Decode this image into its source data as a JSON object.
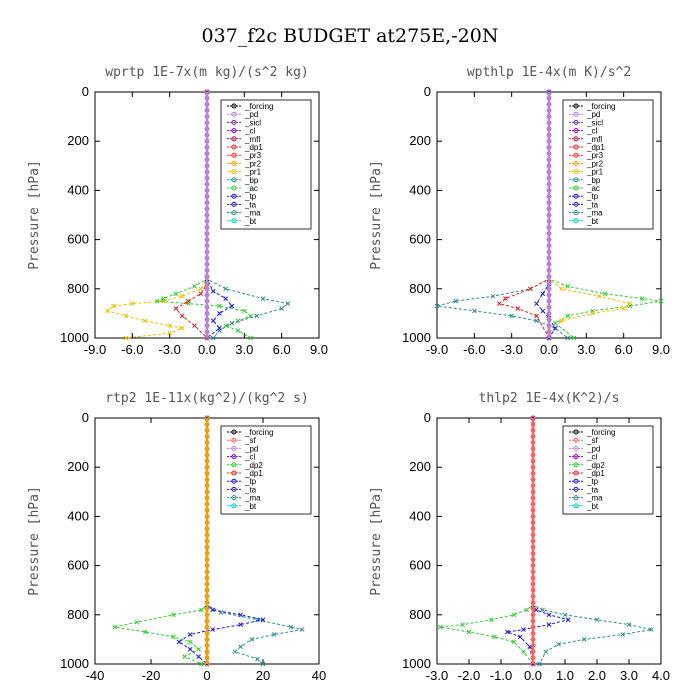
{
  "figure_title": "037_f2c  BUDGET at275E,-20N",
  "chart_data": [
    {
      "type": "line",
      "title": "wprtp  1E-7x(m kg)/(s^2 kg)",
      "ylabel": "Pressure [hPa]",
      "xlim": [
        -9,
        9
      ],
      "ylim": [
        1000,
        0
      ],
      "xticks": [
        "-9.0",
        "-6.0",
        "-3.0",
        "0.0",
        "3.0",
        "6.0",
        "9.0"
      ],
      "yticks": [
        "0",
        "200",
        "400",
        "600",
        "800",
        "1000"
      ],
      "legend": [
        "_forcing",
        "_pd",
        "_sicl",
        "_cl",
        "_mfl",
        "_dp1",
        "_pr3",
        "_pr2",
        "_pr1",
        "_bp",
        "_ac",
        "_tp",
        "_ta",
        "_ma",
        "_bt"
      ],
      "series": [
        {
          "name": "_pr1",
          "color": "#f0c000",
          "x": [
            0,
            0,
            -0.5,
            -2.0,
            -3.5,
            -6.0,
            -7.5,
            -8.0,
            -6.5,
            -5.0,
            -3.0,
            -2.0,
            -3.0,
            -6.5
          ],
          "y": [
            0,
            760,
            800,
            830,
            850,
            860,
            870,
            890,
            910,
            930,
            950,
            960,
            980,
            1000
          ]
        },
        {
          "name": "_ac",
          "color": "#33cc33",
          "x": [
            0,
            0,
            -1.0,
            -2.5,
            -3.5,
            -4.0,
            -1.5,
            1.0,
            3.0,
            3.5,
            2.5,
            1.5,
            2.5,
            3.5
          ],
          "y": [
            0,
            760,
            790,
            820,
            840,
            850,
            860,
            870,
            890,
            910,
            930,
            950,
            970,
            1000
          ]
        },
        {
          "name": "_bp",
          "color": "#2f8f8f",
          "x": [
            0,
            0,
            1.5,
            4.5,
            6.5,
            6.0,
            4.0,
            2.0,
            1.0,
            0.5
          ],
          "y": [
            0,
            760,
            800,
            840,
            860,
            880,
            910,
            940,
            970,
            1000
          ]
        },
        {
          "name": "_tp",
          "color": "#1a1adc",
          "x": [
            0,
            0,
            0.5,
            1.5,
            2.0,
            1.0,
            0.5,
            1.0,
            0.0
          ],
          "y": [
            0,
            760,
            810,
            840,
            870,
            900,
            930,
            960,
            1000
          ]
        },
        {
          "name": "_dp1",
          "color": "#e02020",
          "x": [
            0,
            0,
            -0.5,
            -1.5,
            -2.5,
            -2.0,
            -1.0,
            0.0
          ],
          "y": [
            0,
            780,
            820,
            850,
            880,
            910,
            950,
            1000
          ]
        },
        {
          "name": "_forcing",
          "color": "#000000",
          "x": [
            0,
            0
          ],
          "y": [
            0,
            1000
          ]
        },
        {
          "name": "_pd",
          "color": "#c080e0",
          "x": [
            0,
            0
          ],
          "y": [
            0,
            1000
          ]
        }
      ]
    },
    {
      "type": "line",
      "title": "wpthlp  1E-4x(m K)/s^2",
      "ylabel": "Pressure [hPa]",
      "xlim": [
        -9,
        9
      ],
      "ylim": [
        1000,
        0
      ],
      "xticks": [
        "-9.0",
        "-6.0",
        "-3.0",
        "0.0",
        "3.0",
        "6.0",
        "9.0"
      ],
      "yticks": [
        "0",
        "200",
        "400",
        "600",
        "800",
        "1000"
      ],
      "legend": [
        "_forcing",
        "_pd",
        "_sicl",
        "_cl",
        "_mfl",
        "_dp1",
        "_pr3",
        "_pr2",
        "_pr1",
        "_bp",
        "_ac",
        "_tp",
        "_ta",
        "_ma",
        "_bt"
      ],
      "series": [
        {
          "name": "_bp",
          "color": "#2f8f8f",
          "x": [
            0,
            0,
            -1.5,
            -4.5,
            -7.5,
            -9.0,
            -6.0,
            -3.0,
            -1.0,
            0.5,
            1.5
          ],
          "y": [
            0,
            760,
            800,
            830,
            850,
            870,
            890,
            910,
            930,
            960,
            1000
          ]
        },
        {
          "name": "_ac",
          "color": "#33cc33",
          "x": [
            0,
            0,
            1.5,
            4.5,
            7.5,
            9.0,
            6.5,
            3.5,
            1.5,
            0.5,
            2.0
          ],
          "y": [
            0,
            760,
            790,
            820,
            840,
            850,
            870,
            890,
            910,
            940,
            1000
          ]
        },
        {
          "name": "_pr1",
          "color": "#f0c000",
          "x": [
            0,
            0,
            1.0,
            4.0,
            6.5,
            6.0,
            3.5,
            1.0,
            0.0
          ],
          "y": [
            0,
            760,
            800,
            830,
            860,
            880,
            900,
            930,
            1000
          ]
        },
        {
          "name": "_dp1",
          "color": "#e02020",
          "x": [
            0,
            0,
            -1.5,
            -3.5,
            -4.0,
            -2.5,
            -1.0,
            0.0
          ],
          "y": [
            0,
            760,
            800,
            840,
            860,
            880,
            910,
            1000
          ]
        },
        {
          "name": "_tp",
          "color": "#1a1adc",
          "x": [
            0,
            0,
            -0.5,
            -1.0,
            -0.5,
            0.0,
            0.5,
            0.0
          ],
          "y": [
            0,
            780,
            820,
            860,
            890,
            920,
            960,
            1000
          ]
        },
        {
          "name": "_forcing",
          "color": "#000000",
          "x": [
            0,
            0
          ],
          "y": [
            0,
            1000
          ]
        },
        {
          "name": "_pd",
          "color": "#c080e0",
          "x": [
            0,
            0
          ],
          "y": [
            0,
            1000
          ]
        }
      ]
    },
    {
      "type": "line",
      "title": "rtp2  1E-11x(kg^2)/(kg^2 s)",
      "ylabel": "Pressure [hPa]",
      "xlim": [
        -40,
        40
      ],
      "ylim": [
        1000,
        0
      ],
      "xticks": [
        "-40",
        "-20",
        "0",
        "20",
        "40"
      ],
      "yticks": [
        "0",
        "200",
        "400",
        "600",
        "800",
        "1000"
      ],
      "legend": [
        "_forcing",
        "_sf",
        "_pd",
        "_cl",
        "_dp2",
        "_dp1",
        "_tp",
        "_ta",
        "_ma",
        "_bt"
      ],
      "series": [
        {
          "name": "_dp1",
          "color": "#33cc33",
          "x": [
            0,
            0,
            -2,
            -12,
            -25,
            -33,
            -22,
            -12,
            -6,
            -3,
            -8,
            -2
          ],
          "y": [
            0,
            760,
            780,
            800,
            830,
            850,
            870,
            890,
            910,
            940,
            970,
            1000
          ]
        },
        {
          "name": "_ma",
          "color": "#2f8f8f",
          "x": [
            0,
            0,
            5,
            18,
            30,
            34,
            24,
            16,
            12,
            10,
            18,
            20
          ],
          "y": [
            0,
            760,
            790,
            820,
            850,
            860,
            880,
            900,
            930,
            950,
            980,
            1000
          ]
        },
        {
          "name": "_tp",
          "color": "#1a1adc",
          "x": [
            0,
            0,
            2,
            12,
            20,
            12,
            2,
            -6,
            -10,
            -6,
            -3,
            0
          ],
          "y": [
            0,
            760,
            780,
            800,
            820,
            840,
            860,
            880,
            910,
            940,
            970,
            1000
          ]
        },
        {
          "name": "_forcing",
          "color": "#e02020",
          "x": [
            0,
            0
          ],
          "y": [
            0,
            1000
          ]
        },
        {
          "name": "_sf",
          "color": "#ff6060",
          "x": [
            0,
            0
          ],
          "y": [
            0,
            1000
          ]
        },
        {
          "name": "_pd",
          "color": "#f0a000",
          "x": [
            0,
            0
          ],
          "y": [
            0,
            1000
          ]
        }
      ]
    },
    {
      "type": "line",
      "title": "thlp2  1E-4x(K^2)/s",
      "ylabel": "Pressure [hPa]",
      "xlim": [
        -3,
        4
      ],
      "ylim": [
        1000,
        0
      ],
      "xticks": [
        "-3.0",
        "-2.0",
        "-1.0",
        "0.0",
        "1.0",
        "2.0",
        "3.0",
        "4.0"
      ],
      "yticks": [
        "0",
        "200",
        "400",
        "600",
        "800",
        "1000"
      ],
      "legend": [
        "_forcing",
        "_sf",
        "_pd",
        "_cl",
        "_dp2",
        "_dp1",
        "_tp",
        "_ta",
        "_ma",
        "_bt"
      ],
      "series": [
        {
          "name": "_dp1",
          "color": "#33cc33",
          "x": [
            0,
            0,
            -0.2,
            -0.6,
            -1.3,
            -2.2,
            -2.9,
            -2.0,
            -1.2,
            -0.6,
            -0.3,
            0.0
          ],
          "y": [
            0,
            760,
            780,
            800,
            820,
            840,
            850,
            870,
            890,
            910,
            950,
            1000
          ]
        },
        {
          "name": "_ma",
          "color": "#2f8f8f",
          "x": [
            0,
            0,
            0.3,
            1.0,
            2.0,
            3.0,
            3.7,
            2.8,
            1.6,
            0.8,
            0.4,
            0.2
          ],
          "y": [
            0,
            760,
            780,
            800,
            820,
            840,
            860,
            880,
            900,
            920,
            950,
            1000
          ]
        },
        {
          "name": "_tp",
          "color": "#1a1adc",
          "x": [
            0,
            0,
            0.1,
            0.5,
            1.1,
            0.5,
            -0.3,
            -0.8,
            -0.4,
            -0.1,
            0.0
          ],
          "y": [
            0,
            760,
            780,
            800,
            820,
            840,
            860,
            870,
            890,
            930,
            1000
          ]
        },
        {
          "name": "_forcing",
          "color": "#e02020",
          "x": [
            0,
            0
          ],
          "y": [
            0,
            1000
          ]
        },
        {
          "name": "_sf",
          "color": "#ff6060",
          "x": [
            0,
            0
          ],
          "y": [
            0,
            1000
          ]
        }
      ]
    }
  ]
}
